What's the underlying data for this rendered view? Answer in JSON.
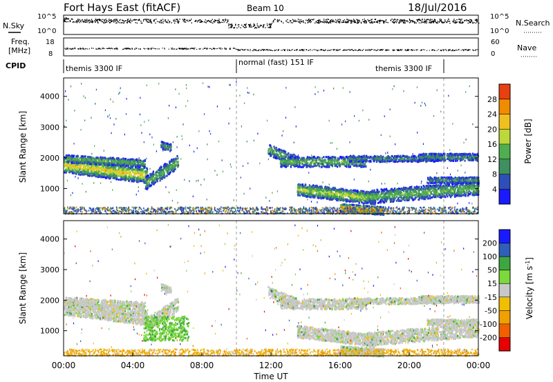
{
  "header": {
    "station": "Fort Hays East (fitACF)",
    "beam": "Beam 10",
    "date": "18/Jul/2016"
  },
  "top_strip": {
    "left_label": "N.Sky",
    "right_label": "N.Search",
    "left_ticks": [
      "10^5",
      "10^0"
    ],
    "right_ticks": [
      "10^5",
      "10^0"
    ]
  },
  "freq_strip": {
    "left_label_line1": "Freq.",
    "left_label_line2": "[MHz]",
    "left_ticks": [
      "18",
      "8"
    ],
    "right_label": "Nave",
    "right_ticks": [
      "60",
      "0"
    ]
  },
  "cpid": {
    "label": "CPID",
    "segments": [
      {
        "text": "themis 3300 IF",
        "start_h": 0
      },
      {
        "text": "normal (fast) 151 IF",
        "start_h": 10
      },
      {
        "text": "themis 3300 IF",
        "start_h": 22
      }
    ]
  },
  "colors": {
    "power": [
      "#1a1aff",
      "#2f4fb8",
      "#3f8f5f",
      "#4fae4f",
      "#bcd83a",
      "#f0c020",
      "#f08c00",
      "#e84010",
      "#e80000"
    ],
    "velocity": [
      "#e80000",
      "#f06000",
      "#f0a000",
      "#f0c000",
      "#c8c8c8",
      "#7cd83c",
      "#3ea63e",
      "#2f5fb8",
      "#1a1aff"
    ]
  },
  "chart_data": [
    {
      "type": "heatmap",
      "quantity": "power",
      "xlabel": "",
      "ylabel": "Slant Range [km]",
      "ylim": [
        180,
        4600
      ],
      "xlim": [
        0,
        24
      ],
      "yticks": [
        "1000",
        "2000",
        "3000",
        "4000"
      ],
      "colorbar_label": "Power [dB]",
      "colorbar_ticks": [
        "4",
        "8",
        "12",
        "16",
        "20",
        "24",
        "28"
      ],
      "colorbar_range": [
        0,
        32
      ]
    },
    {
      "type": "heatmap",
      "quantity": "velocity",
      "xlabel": "Time UT",
      "ylabel": "Slant Range [km]",
      "ylim": [
        180,
        4600
      ],
      "xlim": [
        0,
        24
      ],
      "yticks": [
        "1000",
        "2000",
        "3000",
        "4000"
      ],
      "xticks": [
        "00:00",
        "04:00",
        "08:00",
        "12:00",
        "16:00",
        "20:00",
        "00:00"
      ],
      "colorbar_label": "Velocity [m s^-1]",
      "colorbar_ticks": [
        "-200",
        "-100",
        "-50",
        "-15",
        "15",
        "50",
        "100",
        "200"
      ]
    }
  ]
}
